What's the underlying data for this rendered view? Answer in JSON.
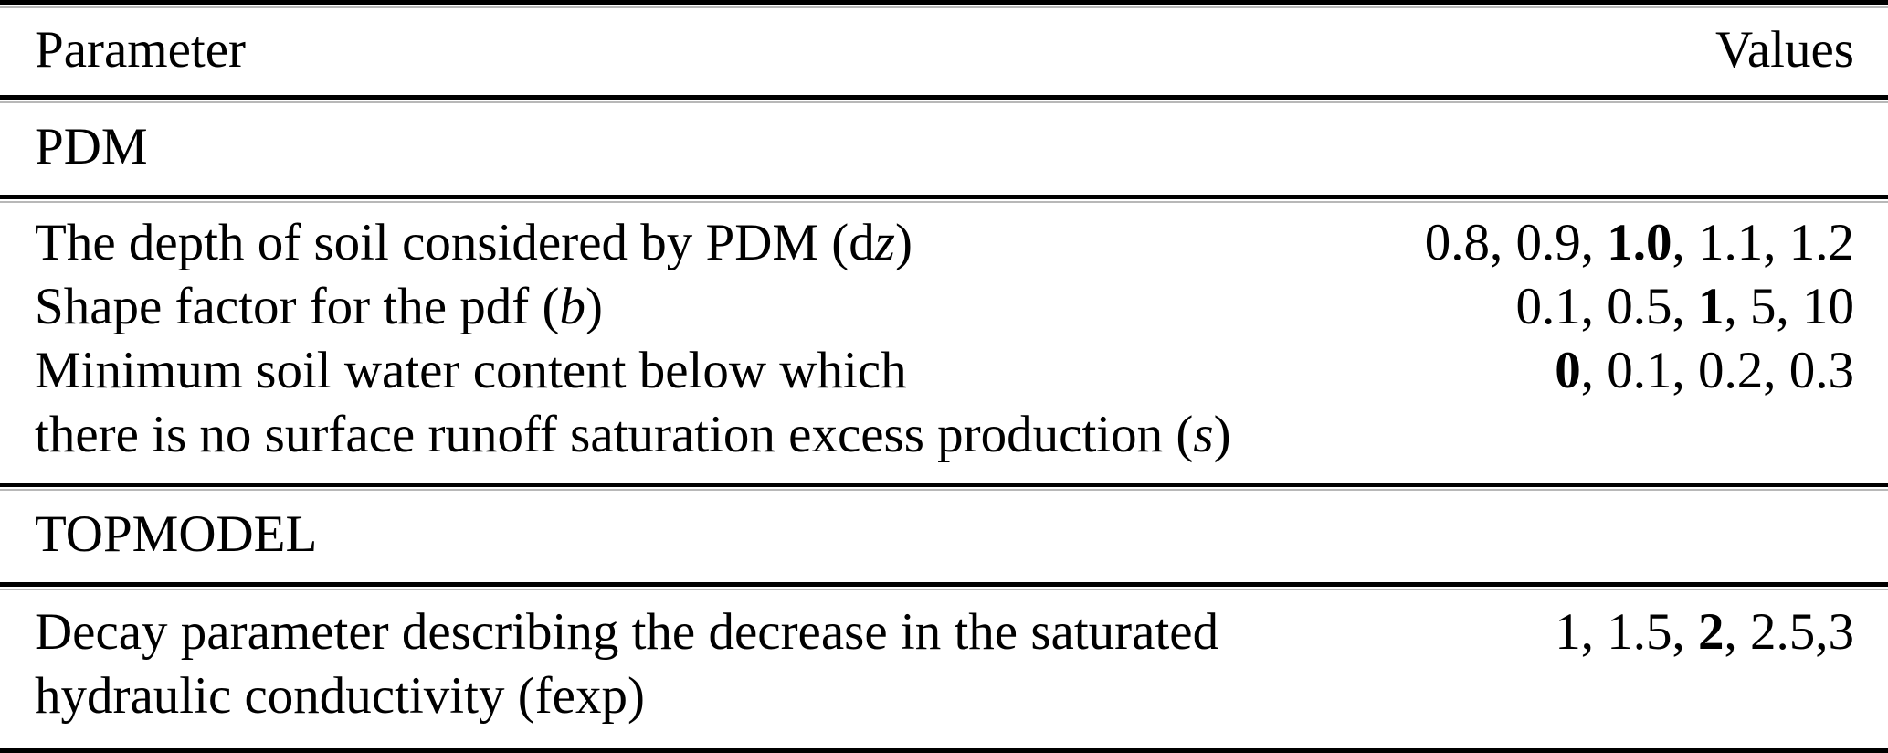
{
  "header": {
    "parameter": "Parameter",
    "values": "Values"
  },
  "sections": [
    {
      "label": "PDM",
      "rows": [
        {
          "param_pre": "The depth of soil considered by PDM (d",
          "param_italic": "z",
          "param_post": ")",
          "value_pre": "0.8, 0.9, ",
          "value_bold": "1.0",
          "value_post": ", 1.1, 1.2"
        },
        {
          "param_pre": "Shape factor for the pdf (",
          "param_italic": "b",
          "param_post": ")",
          "value_pre": "0.1, 0.5, ",
          "value_bold": "1",
          "value_post": ", 5, 10"
        },
        {
          "param_pre": "Minimum soil water content below which",
          "param_italic": "",
          "param_post": "",
          "value_pre": "",
          "value_bold": "0",
          "value_post": ", 0.1, 0.2, 0.3",
          "continuation_pre": "there is no surface runoff saturation excess production (",
          "continuation_italic": "s",
          "continuation_post": ")"
        }
      ]
    },
    {
      "label": "TOPMODEL",
      "rows": [
        {
          "param_pre": "Decay parameter describing the decrease in the saturated",
          "param_italic": "",
          "param_post": "",
          "value_pre": "1, 1.5, ",
          "value_bold": "2",
          "value_post": ", 2.5,3",
          "continuation_pre": "hydraulic conductivity (fexp)",
          "continuation_italic": "",
          "continuation_post": ""
        }
      ]
    }
  ]
}
